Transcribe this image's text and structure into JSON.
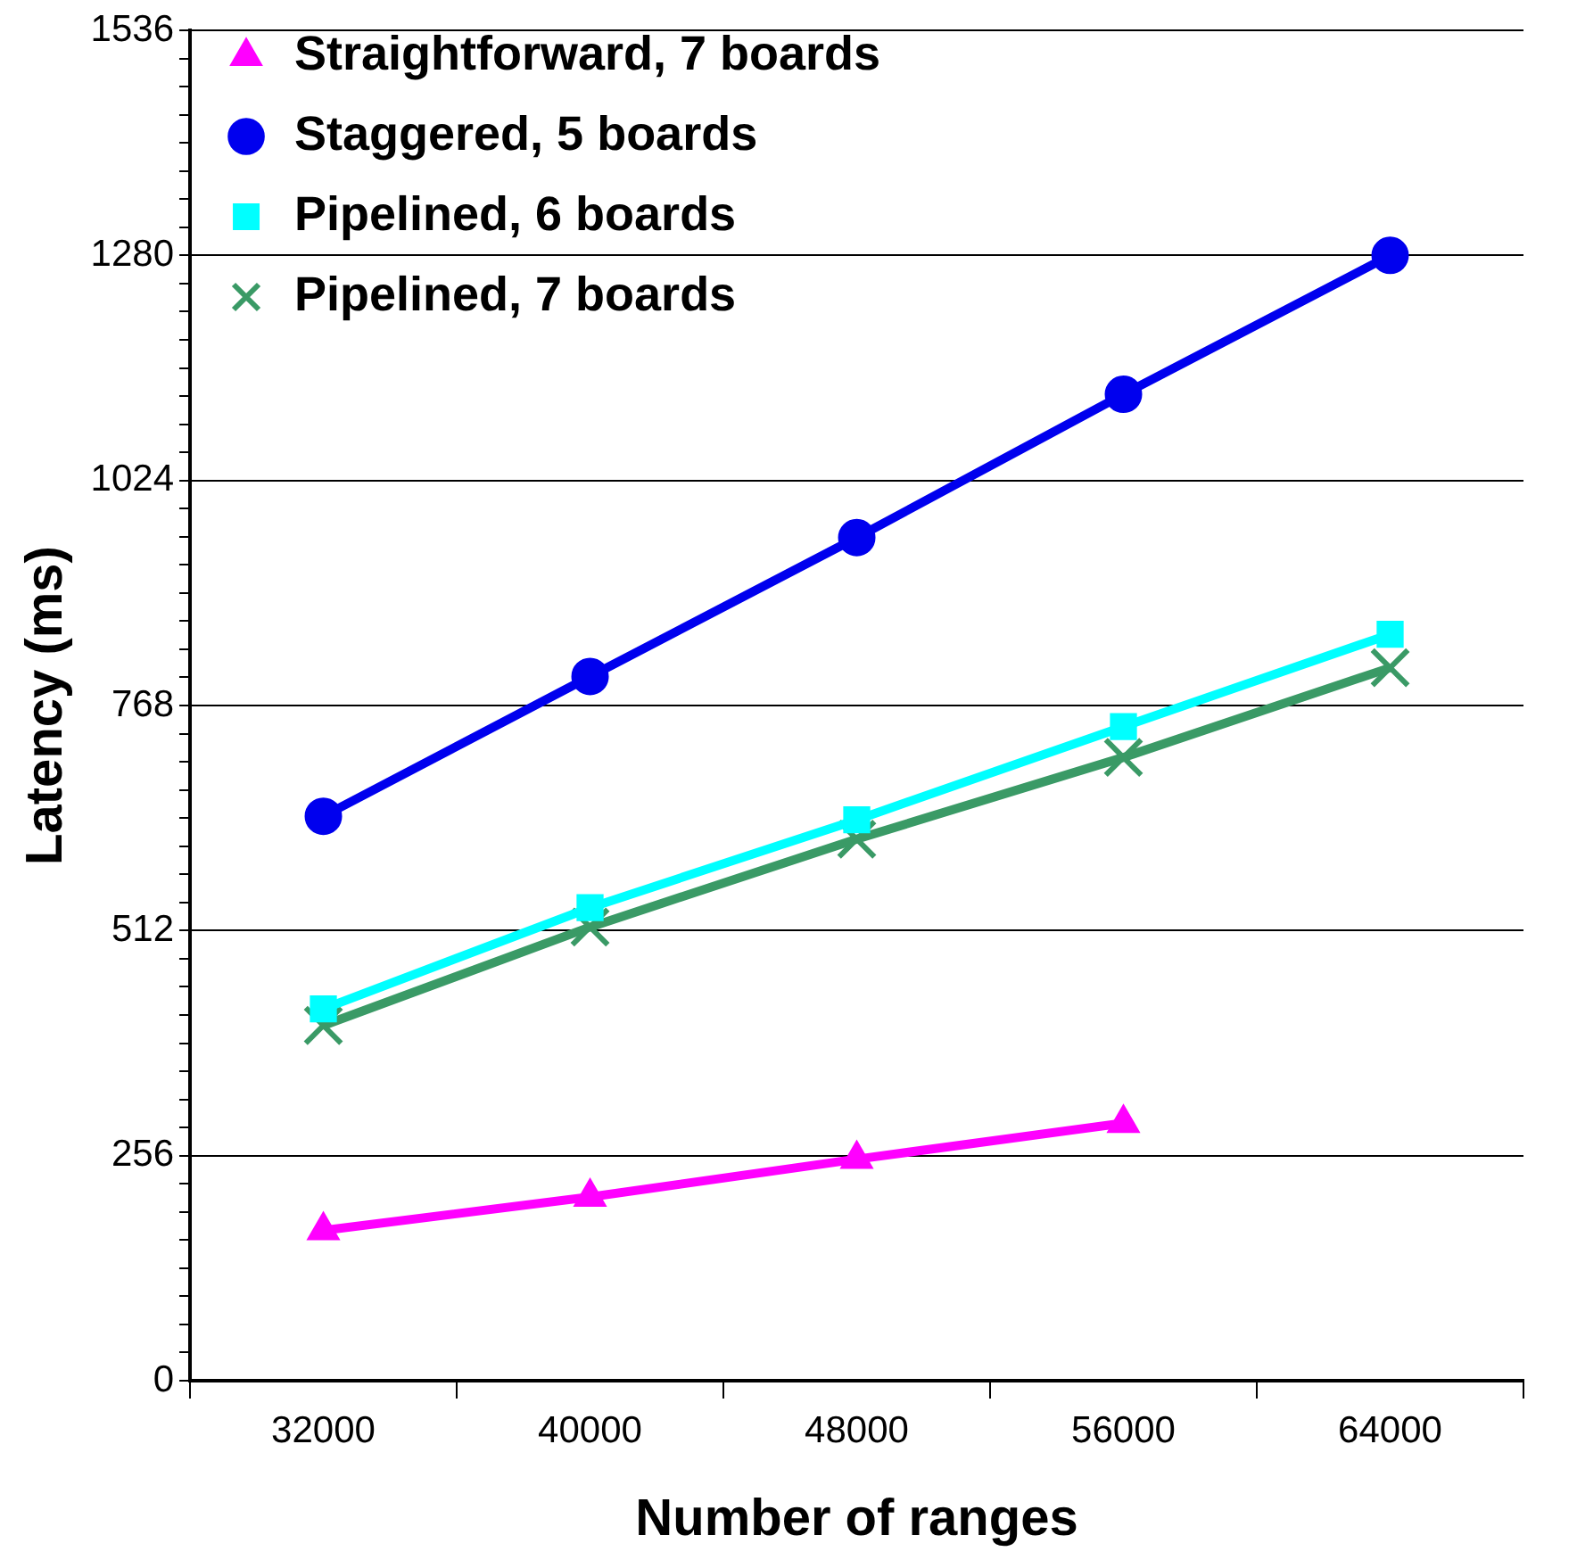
{
  "chart_data": {
    "type": "line",
    "xlabel": "Number of ranges",
    "ylabel": "Latency (ms)",
    "categories": [
      "32000",
      "40000",
      "48000",
      "56000",
      "64000"
    ],
    "series": [
      {
        "name": "Straightforward, 7 boards",
        "color": "#ff00ff",
        "marker": "triangle",
        "values": [
          171,
          209,
          252,
          293,
          null
        ]
      },
      {
        "name": "Staggered, 5 boards",
        "color": "#0000ee",
        "marker": "circle",
        "values": [
          642,
          801,
          959,
          1122,
          1280
        ]
      },
      {
        "name": "Pipelined, 6 boards",
        "color": "#00ffff",
        "marker": "square",
        "values": [
          423,
          538,
          638,
          744,
          849
        ]
      },
      {
        "name": "Pipelined, 7 boards",
        "color": "#3a9a66",
        "marker": "cross",
        "values": [
          404,
          516,
          616,
          709,
          811
        ]
      }
    ],
    "ylim": [
      0,
      1536
    ],
    "yticks": [
      0,
      {
        "value": 32,
        "label": null
      },
      {
        "value": 64,
        "label": null
      },
      {
        "value": 96,
        "label": null
      },
      {
        "value": 128,
        "label": null
      },
      {
        "value": 160,
        "label": null
      },
      {
        "value": 192,
        "label": null
      },
      {
        "value": 224,
        "label": null
      },
      256,
      {
        "value": 288,
        "label": null
      },
      {
        "value": 320,
        "label": null
      },
      {
        "value": 352,
        "label": null
      },
      {
        "value": 384,
        "label": null
      },
      {
        "value": 416,
        "label": null
      },
      {
        "value": 448,
        "label": null
      },
      {
        "value": 480,
        "label": null
      },
      512,
      {
        "value": 544,
        "label": null
      },
      {
        "value": 576,
        "label": null
      },
      {
        "value": 608,
        "label": null
      },
      {
        "value": 640,
        "label": null
      },
      {
        "value": 672,
        "label": null
      },
      {
        "value": 704,
        "label": null
      },
      {
        "value": 736,
        "label": null
      },
      768,
      {
        "value": 800,
        "label": null
      },
      {
        "value": 832,
        "label": null
      },
      {
        "value": 864,
        "label": null
      },
      {
        "value": 896,
        "label": null
      },
      {
        "value": 928,
        "label": null
      },
      {
        "value": 960,
        "label": null
      },
      {
        "value": 992,
        "label": null
      },
      1024,
      {
        "value": 1056,
        "label": null
      },
      {
        "value": 1088,
        "label": null
      },
      {
        "value": 1120,
        "label": null
      },
      {
        "value": 1152,
        "label": null
      },
      {
        "value": 1184,
        "label": null
      },
      {
        "value": 1216,
        "label": null
      },
      {
        "value": 1248,
        "label": null
      },
      1280,
      {
        "value": 1312,
        "label": null
      },
      {
        "value": 1344,
        "label": null
      },
      {
        "value": 1376,
        "label": null
      },
      {
        "value": 1408,
        "label": null
      },
      {
        "value": 1440,
        "label": null
      },
      {
        "value": 1472,
        "label": null
      },
      {
        "value": 1504,
        "label": null
      },
      1536
    ],
    "grid": "y",
    "legend": "top left",
    "line_style": "solid"
  }
}
